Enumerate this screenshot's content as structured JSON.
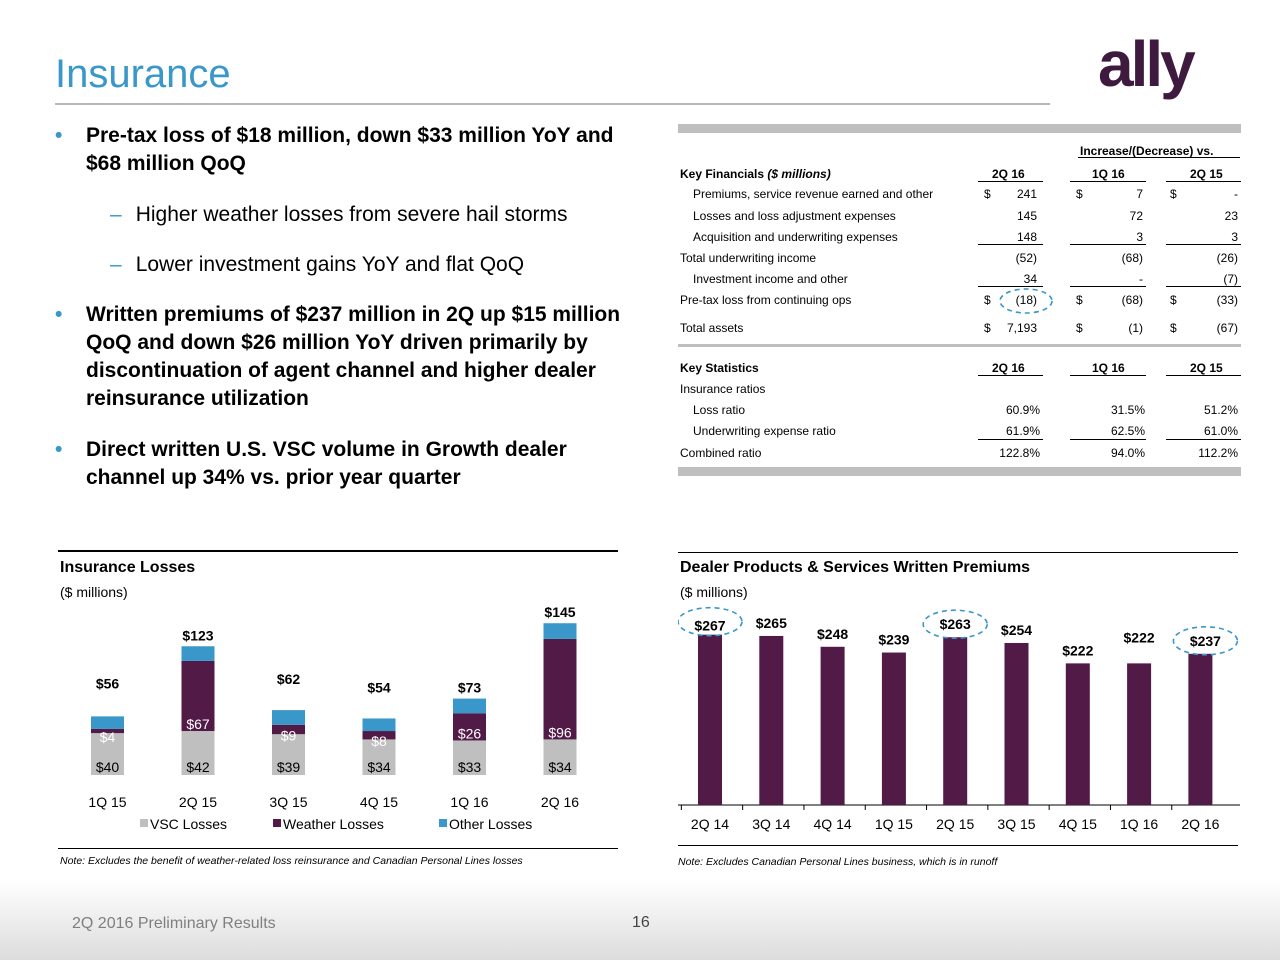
{
  "slide": {
    "title": "Insurance",
    "footer": "2Q 2016 Preliminary Results",
    "page_number": "16",
    "logo_text": "ally",
    "accent_color": "#3a97c9",
    "brand_color": "#3d1a3e"
  },
  "bullets": [
    {
      "text_line1": "Pre-tax loss of $18 million, down $33 million YoY and",
      "text_line2": "$68 million QoQ"
    },
    {
      "text_lines": [
        "Written premiums of $237 million in 2Q up $15 million",
        "QoQ and down $26 million YoY driven primarily by",
        "discontinuation of agent channel and higher dealer",
        "reinsurance utilization"
      ]
    },
    {
      "text_lines": [
        "Direct written U.S. VSC volume in Growth dealer",
        "channel up 34% vs. prior year quarter"
      ]
    }
  ],
  "sub_bullets": [
    "Higher weather losses from severe hail storms",
    "Lower investment gains YoY and flat QoQ"
  ],
  "financials_table": {
    "super_header": "Increase/(Decrease) vs.",
    "header_label": "Key Financials",
    "header_label_italic": "($ millions)",
    "columns": [
      "2Q 16",
      "1Q 16",
      "2Q 15"
    ],
    "rows": [
      {
        "label": "Premiums, service revenue earned and other",
        "indent": true,
        "cur": "$",
        "v1": "241",
        "c2": "$",
        "v2": "7",
        "c3": "$",
        "v3": "-"
      },
      {
        "label": "Losses and loss adjustment expenses",
        "indent": true,
        "cur": "",
        "v1": "145",
        "c2": "",
        "v2": "72",
        "c3": "",
        "v3": "23"
      },
      {
        "label": "Acquisition and underwriting expenses",
        "indent": true,
        "cur": "",
        "v1": "148",
        "c2": "",
        "v2": "3",
        "c3": "",
        "v3": "3"
      },
      {
        "label": "Total underwriting income",
        "indent": false,
        "cur": "",
        "v1": "(52)",
        "c2": "",
        "v2": "(68)",
        "c3": "",
        "v3": "(26)"
      },
      {
        "label": "Investment income and other",
        "indent": true,
        "cur": "",
        "v1": "34",
        "c2": "",
        "v2": "-",
        "c3": "",
        "v3": "(7)"
      },
      {
        "label": "Pre-tax loss from continuing ops",
        "indent": false,
        "cur": "$",
        "v1": "(18)",
        "c2": "$",
        "v2": "(68)",
        "c3": "$",
        "v3": "(33)"
      },
      {
        "label": "Total assets",
        "indent": false,
        "cur": "$",
        "v1": "7,193",
        "c2": "$",
        "v2": "(1)",
        "c3": "$",
        "v3": "(67)"
      }
    ]
  },
  "statistics_table": {
    "header_label": "Key Statistics",
    "columns": [
      "2Q 16",
      "1Q 16",
      "2Q 15"
    ],
    "section_label": "Insurance ratios",
    "rows": [
      {
        "label": "Loss ratio",
        "indent": true,
        "v1": "60.9%",
        "v2": "31.5%",
        "v3": "51.2%"
      },
      {
        "label": "Underwriting expense ratio",
        "indent": true,
        "v1": "61.9%",
        "v2": "62.5%",
        "v3": "61.0%"
      },
      {
        "label": "Combined ratio",
        "indent": false,
        "v1": "122.8%",
        "v2": "94.0%",
        "v3": "112.2%"
      }
    ]
  },
  "chart_data": [
    {
      "type": "bar",
      "stacked": true,
      "title": "Insurance Losses",
      "subtitle": "($ millions)",
      "categories": [
        "1Q 15",
        "2Q 15",
        "3Q 15",
        "4Q 15",
        "1Q 16",
        "2Q 16"
      ],
      "series": [
        {
          "name": "VSC Losses",
          "color": "#bfbfbf",
          "values": [
            40,
            42,
            39,
            34,
            33,
            34
          ],
          "labels": [
            "$40",
            "$42",
            "$39",
            "$34",
            "$33",
            "$34"
          ]
        },
        {
          "name": "Weather Losses",
          "color": "#521a47",
          "values": [
            4,
            67,
            9,
            8,
            26,
            96
          ],
          "labels": [
            "$4",
            "$67",
            "$9",
            "$8",
            "$26",
            "$96"
          ]
        },
        {
          "name": "Other Losses",
          "color": "#3a97c9",
          "values": [
            12,
            14,
            14,
            12,
            14,
            15
          ],
          "labels": [
            "",
            "",
            "",
            "",
            "",
            ""
          ]
        }
      ],
      "totals": [
        "$56",
        "$123",
        "$62",
        "$54",
        "$73",
        "$145"
      ],
      "ylim": [
        0,
        150
      ],
      "legend": "bottom",
      "note": "Note: Excludes the benefit of weather-related loss reinsurance and Canadian Personal Lines losses"
    },
    {
      "type": "bar",
      "title": "Dealer Products & Services Written Premiums",
      "subtitle": "($ millions)",
      "categories": [
        "2Q 14",
        "3Q 14",
        "4Q 14",
        "1Q 15",
        "2Q 15",
        "3Q 15",
        "4Q 15",
        "1Q 16",
        "2Q 16"
      ],
      "values": [
        267,
        265,
        248,
        239,
        263,
        254,
        222,
        222,
        237
      ],
      "labels": [
        "$267",
        "$265",
        "$248",
        "$239",
        "$263",
        "$254",
        "$222",
        "$222",
        "$237"
      ],
      "highlighted": [
        "2Q 14",
        "2Q 15",
        "2Q 16"
      ],
      "color": "#521a47",
      "ylim": [
        0,
        290
      ],
      "note": "Note: Excludes Canadian Personal Lines business, which is in runoff"
    }
  ]
}
